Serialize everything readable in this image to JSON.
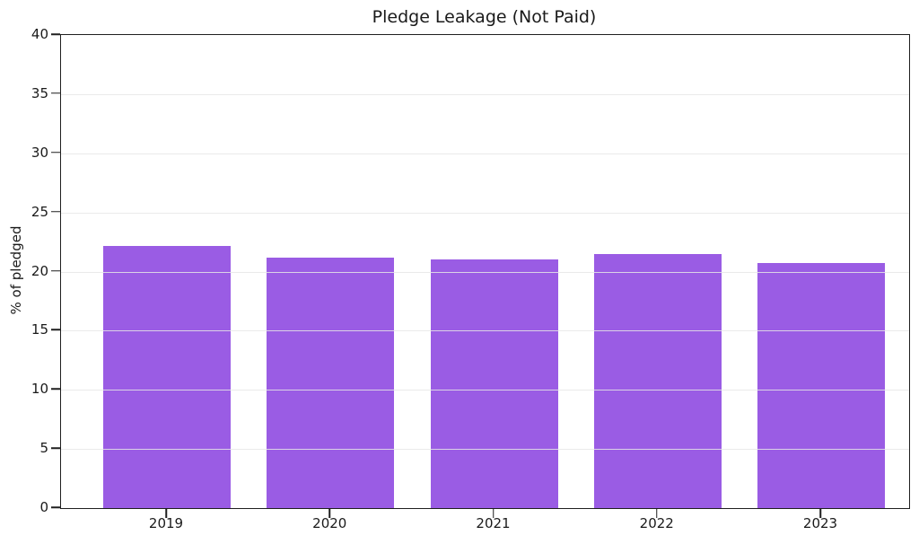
{
  "chart_data": {
    "type": "bar",
    "title": "Pledge Leakage (Not Paid)",
    "categories": [
      "2019",
      "2020",
      "2021",
      "2022",
      "2023"
    ],
    "values": [
      22.2,
      21.2,
      21.0,
      21.5,
      20.7
    ],
    "xlabel": "",
    "ylabel": "% of pledged",
    "ylim": [
      0,
      40
    ],
    "yticks": [
      0,
      5,
      10,
      15,
      20,
      25,
      30,
      35,
      40
    ],
    "grid": "horizontal",
    "grid_above_bars": true,
    "legend": "none",
    "bar_color": "#9a5ce4",
    "grid_color": "#e6e6e6",
    "axis_color": "#1f1f1f",
    "background_color": "#ffffff"
  }
}
